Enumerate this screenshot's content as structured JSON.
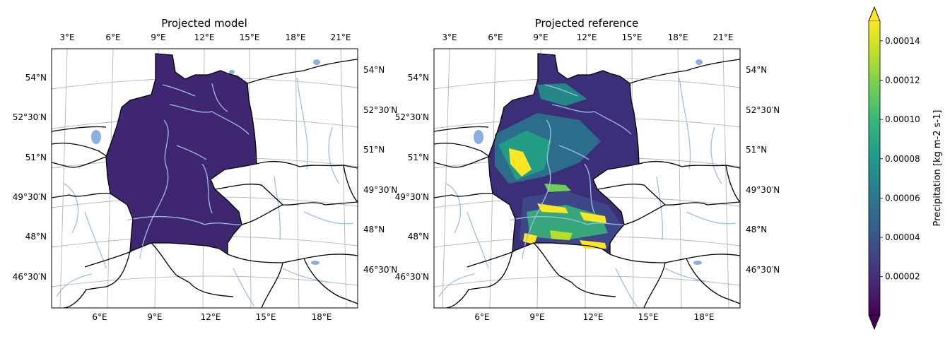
{
  "panels": [
    {
      "title": "Projected model",
      "lon_top": [
        "3°E",
        "6°E",
        "9°E",
        "12°E",
        "15°E",
        "18°E",
        "21°E"
      ],
      "lon_bottom": [
        "6°E",
        "9°E",
        "12°E",
        "15°E",
        "18°E"
      ],
      "lat_left": [
        "54°N",
        "52°30′N",
        "51°N",
        "49°30′N",
        "48°N",
        "46°30′N"
      ],
      "lat_right": [
        "54°N",
        "52°30′N",
        "51°N",
        "49°30′N",
        "48°N",
        "46°30′N"
      ]
    },
    {
      "title": "Projected reference",
      "lon_top": [
        "3°E",
        "6°E",
        "9°E",
        "12°E",
        "15°E",
        "18°E",
        "21°E"
      ],
      "lon_bottom": [
        "6°E",
        "9°E",
        "12°E",
        "15°E",
        "18°E"
      ],
      "lat_left": [
        "54°N",
        "52°30′N",
        "51°N",
        "49°30′N",
        "48°N",
        "46°30′N"
      ],
      "lat_right": [
        "54°N",
        "52°30′N",
        "51°N",
        "49°30′N",
        "48°N",
        "46°30′N"
      ]
    }
  ],
  "colorbar": {
    "label": "Precipitation [kg m-2 s-1]",
    "ticks": [
      "0.00002",
      "0.00004",
      "0.00006",
      "0.00008",
      "0.00010",
      "0.00012",
      "0.00014"
    ],
    "tick_values": [
      2e-05,
      4e-05,
      6e-05,
      8e-05,
      0.0001,
      0.00012,
      0.00014
    ],
    "range": [
      5e-07,
      0.00015
    ],
    "colormap": "viridis",
    "extend": "both"
  },
  "colors": {
    "rivers": "#9fbfe6",
    "lakes": "#8ab0e3",
    "gridlines": "#b5b5b5",
    "borders": "#000000",
    "model_fill": "#3e2770",
    "viridis": [
      "#440154",
      "#482878",
      "#3e4989",
      "#31688e",
      "#26828e",
      "#1f9e89",
      "#35b779",
      "#6ece58",
      "#b5de2b",
      "#fde725"
    ]
  }
}
